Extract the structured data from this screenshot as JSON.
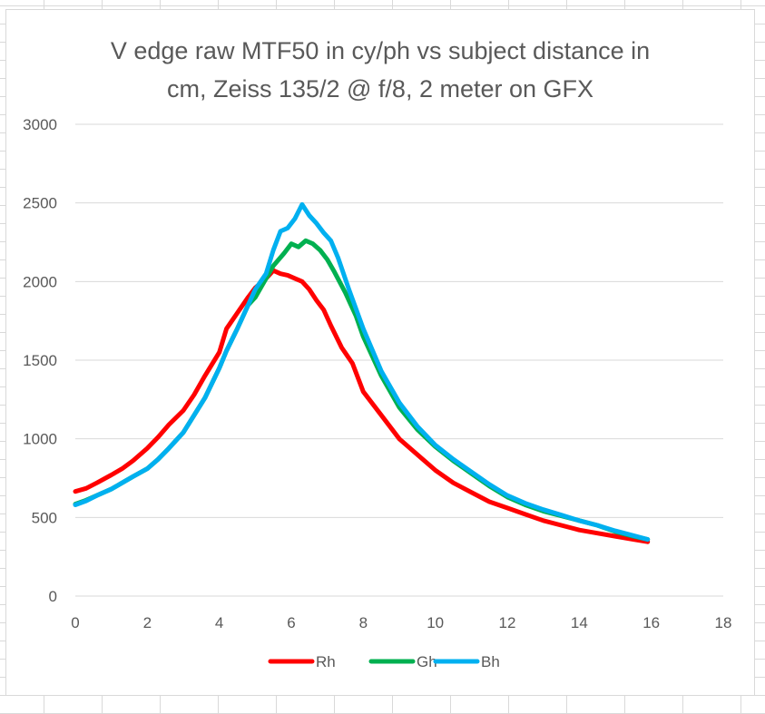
{
  "chart_data": {
    "type": "line",
    "title_lines": [
      "V edge raw MTF50 in cy/ph vs subject distance in",
      "cm, Zeiss 135/2 @ f/8, 2 meter on GFX"
    ],
    "xlabel": "",
    "ylabel": "",
    "xlim": [
      0,
      18
    ],
    "ylim": [
      0,
      3000
    ],
    "xticks": [
      0,
      2,
      4,
      6,
      8,
      10,
      12,
      14,
      16,
      18
    ],
    "yticks": [
      0,
      500,
      1000,
      1500,
      2000,
      2500,
      3000
    ],
    "grid": true,
    "legend_position": "bottom",
    "series": [
      {
        "name": "Rh",
        "color": "#ff0000",
        "points": [
          [
            0,
            665
          ],
          [
            0.3,
            685
          ],
          [
            0.6,
            720
          ],
          [
            1.0,
            770
          ],
          [
            1.3,
            810
          ],
          [
            1.6,
            860
          ],
          [
            2.0,
            940
          ],
          [
            2.3,
            1010
          ],
          [
            2.6,
            1090
          ],
          [
            3.0,
            1180
          ],
          [
            3.3,
            1280
          ],
          [
            3.6,
            1400
          ],
          [
            4.0,
            1550
          ],
          [
            4.2,
            1700
          ],
          [
            4.5,
            1800
          ],
          [
            4.8,
            1900
          ],
          [
            5.0,
            1960
          ],
          [
            5.3,
            2020
          ],
          [
            5.5,
            2070
          ],
          [
            5.7,
            2050
          ],
          [
            5.9,
            2040
          ],
          [
            6.1,
            2020
          ],
          [
            6.3,
            2000
          ],
          [
            6.5,
            1950
          ],
          [
            6.7,
            1880
          ],
          [
            6.9,
            1820
          ],
          [
            7.1,
            1720
          ],
          [
            7.4,
            1580
          ],
          [
            7.7,
            1480
          ],
          [
            8.0,
            1300
          ],
          [
            8.5,
            1150
          ],
          [
            9.0,
            1000
          ],
          [
            9.5,
            900
          ],
          [
            10.0,
            800
          ],
          [
            10.5,
            720
          ],
          [
            11.0,
            660
          ],
          [
            11.5,
            600
          ],
          [
            12.0,
            560
          ],
          [
            12.5,
            520
          ],
          [
            13.0,
            480
          ],
          [
            13.5,
            450
          ],
          [
            14.0,
            420
          ],
          [
            14.5,
            400
          ],
          [
            15.0,
            380
          ],
          [
            15.5,
            360
          ],
          [
            15.9,
            345
          ]
        ]
      },
      {
        "name": "Gh",
        "color": "#00b050",
        "points": [
          [
            0,
            585
          ],
          [
            0.3,
            610
          ],
          [
            0.6,
            640
          ],
          [
            1.0,
            680
          ],
          [
            1.3,
            720
          ],
          [
            1.6,
            760
          ],
          [
            2.0,
            810
          ],
          [
            2.3,
            870
          ],
          [
            2.6,
            940
          ],
          [
            3.0,
            1040
          ],
          [
            3.3,
            1150
          ],
          [
            3.6,
            1260
          ],
          [
            4.0,
            1450
          ],
          [
            4.2,
            1560
          ],
          [
            4.5,
            1700
          ],
          [
            4.8,
            1850
          ],
          [
            5.0,
            1900
          ],
          [
            5.2,
            1980
          ],
          [
            5.5,
            2100
          ],
          [
            5.8,
            2180
          ],
          [
            6.0,
            2240
          ],
          [
            6.2,
            2220
          ],
          [
            6.4,
            2260
          ],
          [
            6.6,
            2240
          ],
          [
            6.8,
            2200
          ],
          [
            7.0,
            2140
          ],
          [
            7.2,
            2060
          ],
          [
            7.5,
            1930
          ],
          [
            7.8,
            1780
          ],
          [
            8.0,
            1650
          ],
          [
            8.5,
            1400
          ],
          [
            9.0,
            1200
          ],
          [
            9.5,
            1060
          ],
          [
            10.0,
            950
          ],
          [
            10.5,
            860
          ],
          [
            11.0,
            780
          ],
          [
            11.5,
            700
          ],
          [
            12.0,
            630
          ],
          [
            12.5,
            580
          ],
          [
            13.0,
            540
          ],
          [
            13.5,
            510
          ],
          [
            14.0,
            480
          ],
          [
            14.5,
            450
          ],
          [
            15.0,
            410
          ],
          [
            15.5,
            380
          ],
          [
            15.9,
            360
          ]
        ]
      },
      {
        "name": "Bh",
        "color": "#00b0f0",
        "points": [
          [
            0,
            580
          ],
          [
            0.3,
            605
          ],
          [
            0.6,
            640
          ],
          [
            1.0,
            680
          ],
          [
            1.3,
            720
          ],
          [
            1.6,
            760
          ],
          [
            2.0,
            810
          ],
          [
            2.3,
            870
          ],
          [
            2.6,
            940
          ],
          [
            3.0,
            1040
          ],
          [
            3.3,
            1150
          ],
          [
            3.6,
            1260
          ],
          [
            4.0,
            1450
          ],
          [
            4.2,
            1560
          ],
          [
            4.5,
            1700
          ],
          [
            4.8,
            1850
          ],
          [
            5.0,
            1950
          ],
          [
            5.3,
            2050
          ],
          [
            5.5,
            2200
          ],
          [
            5.7,
            2320
          ],
          [
            5.9,
            2340
          ],
          [
            6.1,
            2400
          ],
          [
            6.3,
            2490
          ],
          [
            6.5,
            2420
          ],
          [
            6.7,
            2370
          ],
          [
            6.9,
            2310
          ],
          [
            7.1,
            2260
          ],
          [
            7.3,
            2150
          ],
          [
            7.6,
            1950
          ],
          [
            8.0,
            1700
          ],
          [
            8.5,
            1430
          ],
          [
            9.0,
            1230
          ],
          [
            9.5,
            1080
          ],
          [
            10.0,
            960
          ],
          [
            10.5,
            870
          ],
          [
            11.0,
            790
          ],
          [
            11.5,
            710
          ],
          [
            12.0,
            640
          ],
          [
            12.5,
            590
          ],
          [
            13.0,
            550
          ],
          [
            13.5,
            515
          ],
          [
            14.0,
            480
          ],
          [
            14.5,
            450
          ],
          [
            15.0,
            415
          ],
          [
            15.5,
            385
          ],
          [
            15.9,
            360
          ]
        ]
      }
    ]
  }
}
